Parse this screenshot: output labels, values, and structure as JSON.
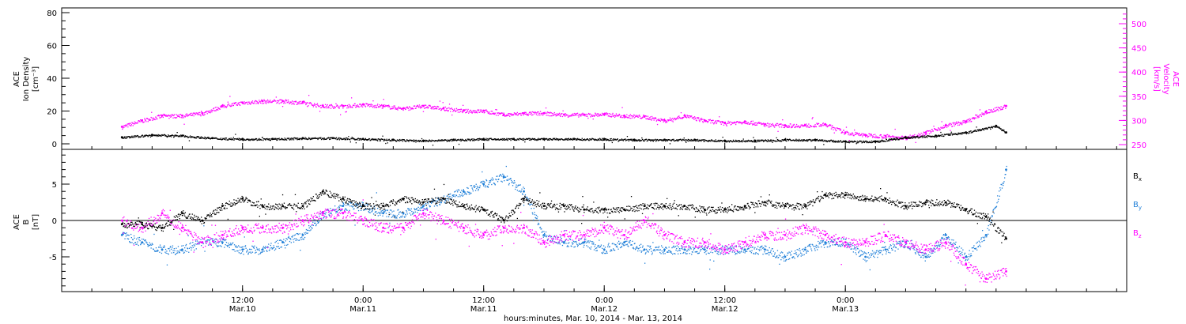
{
  "colors": {
    "black": "#000000",
    "magenta": "#ff00ff",
    "blue": "#1f7fd8",
    "frame": "#000000"
  },
  "chart_data": [
    {
      "type": "scatter",
      "panel": "top",
      "ylabel_left": [
        "ACE",
        "Ion Density",
        "[cm⁻³]"
      ],
      "ylabel_right": [
        "ACE",
        "Velocity",
        "[km/s]"
      ],
      "ylim_left": [
        0,
        80
      ],
      "ylim_right": [
        240,
        530
      ],
      "yticks_left": [
        0,
        20,
        40,
        60,
        80
      ],
      "yticks_right": [
        250,
        300,
        350,
        400,
        450,
        500
      ],
      "series": [
        {
          "name": "Ion Density",
          "axis": "left",
          "color": "#000000",
          "x": [
            0,
            3,
            6,
            9,
            12,
            15,
            18,
            21,
            24,
            27,
            30,
            33,
            36,
            39,
            42,
            45,
            48,
            51,
            54,
            57,
            60,
            63,
            66,
            69,
            72,
            75,
            78,
            81,
            84,
            87,
            88
          ],
          "values": [
            4,
            5.5,
            5,
            3.5,
            3,
            3,
            3.5,
            3.5,
            3,
            2.5,
            2,
            2.5,
            3,
            3,
            3,
            3,
            3,
            2.5,
            2.5,
            2.5,
            2,
            2,
            2.5,
            2.5,
            1.5,
            1.5,
            4,
            5,
            7,
            11,
            7
          ]
        },
        {
          "name": "Velocity",
          "axis": "right",
          "color": "#ff00ff",
          "x": [
            0,
            2,
            4,
            6,
            8,
            10,
            12,
            14,
            16,
            18,
            20,
            22,
            24,
            26,
            28,
            30,
            32,
            34,
            36,
            38,
            40,
            42,
            44,
            46,
            48,
            50,
            52,
            54,
            56,
            58,
            60,
            62,
            64,
            66,
            68,
            70,
            72,
            74,
            76,
            78,
            80,
            82,
            84,
            86,
            88
          ],
          "values": [
            287,
            300,
            310,
            310,
            315,
            330,
            337,
            340,
            340,
            337,
            330,
            330,
            333,
            330,
            325,
            330,
            325,
            320,
            320,
            312,
            315,
            315,
            312,
            312,
            313,
            310,
            308,
            300,
            310,
            300,
            295,
            298,
            292,
            290,
            290,
            292,
            275,
            270,
            268,
            265,
            275,
            290,
            298,
            318,
            330
          ]
        }
      ]
    },
    {
      "type": "scatter",
      "panel": "bottom",
      "ylabel_left": [
        "ACE",
        "B",
        "[nT]"
      ],
      "ylim": [
        -10,
        10
      ],
      "yticks": [
        -5,
        0,
        5
      ],
      "series": [
        {
          "name": "Bx",
          "color": "#000000",
          "x": [
            0,
            2,
            4,
            6,
            8,
            10,
            12,
            14,
            16,
            18,
            20,
            22,
            24,
            26,
            28,
            30,
            32,
            34,
            36,
            38,
            40,
            42,
            44,
            46,
            48,
            50,
            52,
            54,
            56,
            58,
            60,
            62,
            64,
            66,
            68,
            70,
            72,
            74,
            76,
            78,
            80,
            82,
            84,
            86,
            88
          ],
          "values": [
            -0.5,
            -0.5,
            -1,
            1,
            0,
            2,
            3,
            2,
            2,
            2,
            4,
            3,
            2,
            2,
            3,
            2.5,
            3,
            2,
            1.5,
            0,
            3,
            2,
            2,
            1.5,
            1.5,
            1.5,
            2,
            2,
            2,
            1.5,
            1.5,
            2,
            2.5,
            2,
            2,
            3.5,
            3.5,
            3,
            3,
            2,
            2.5,
            2.5,
            1.5,
            0.5,
            -2.5
          ]
        },
        {
          "name": "By",
          "color": "#1f7fd8",
          "x": [
            0,
            2,
            4,
            6,
            8,
            10,
            12,
            14,
            16,
            18,
            20,
            22,
            24,
            26,
            28,
            30,
            32,
            34,
            36,
            38,
            40,
            42,
            44,
            46,
            48,
            50,
            52,
            54,
            56,
            58,
            60,
            62,
            64,
            66,
            68,
            70,
            72,
            74,
            76,
            78,
            80,
            82,
            84,
            86,
            88
          ],
          "values": [
            -2,
            -3,
            -4,
            -4,
            -3,
            -3,
            -4,
            -4,
            -3,
            -2,
            1,
            2,
            2,
            1,
            1,
            2,
            3,
            4,
            5,
            6,
            4,
            -2,
            -3,
            -3,
            -4,
            -3,
            -4,
            -4,
            -4,
            -4,
            -4,
            -4,
            -4,
            -5,
            -4,
            -3,
            -3,
            -5,
            -4,
            -3,
            -5,
            -2,
            -5,
            -2,
            7
          ]
        },
        {
          "name": "Bz",
          "color": "#ff00ff",
          "x": [
            0,
            2,
            4,
            6,
            8,
            10,
            12,
            14,
            16,
            18,
            20,
            22,
            24,
            26,
            28,
            30,
            32,
            34,
            36,
            38,
            40,
            42,
            44,
            46,
            48,
            50,
            52,
            54,
            56,
            58,
            60,
            62,
            64,
            66,
            68,
            70,
            72,
            74,
            76,
            78,
            80,
            82,
            84,
            86,
            88
          ],
          "values": [
            0,
            -1,
            1,
            -1,
            -3,
            -2,
            -1,
            -1,
            -1,
            0,
            1,
            1,
            0,
            -1,
            -1,
            1,
            0,
            -1,
            -2,
            -1,
            -1,
            -3,
            -2,
            -2,
            -1,
            -2,
            0,
            -2,
            -3,
            -3,
            -4,
            -3,
            -2,
            -2,
            -1,
            -2,
            -3,
            -3,
            -2,
            -3,
            -4,
            -3,
            -6,
            -8,
            -7
          ]
        }
      ]
    }
  ],
  "x_axis": {
    "range_hours": [
      -6,
      100
    ],
    "ticks": [
      {
        "h": 12,
        "time": "12:00",
        "date": "Mar.10"
      },
      {
        "h": 24,
        "time": "0:00",
        "date": "Mar.11"
      },
      {
        "h": 36,
        "time": "12:00",
        "date": "Mar.11"
      },
      {
        "h": 48,
        "time": "0:00",
        "date": "Mar.12"
      },
      {
        "h": 60,
        "time": "12:00",
        "date": "Mar.12"
      },
      {
        "h": 72,
        "time": "0:00",
        "date": "Mar.13"
      }
    ],
    "label": "hours:minutes, Mar. 10, 2014 - Mar. 13, 2014"
  },
  "legend": {
    "bx": "B",
    "bx_sub": "x",
    "by": "B",
    "by_sub": "y",
    "bz": "B",
    "bz_sub": "z"
  }
}
